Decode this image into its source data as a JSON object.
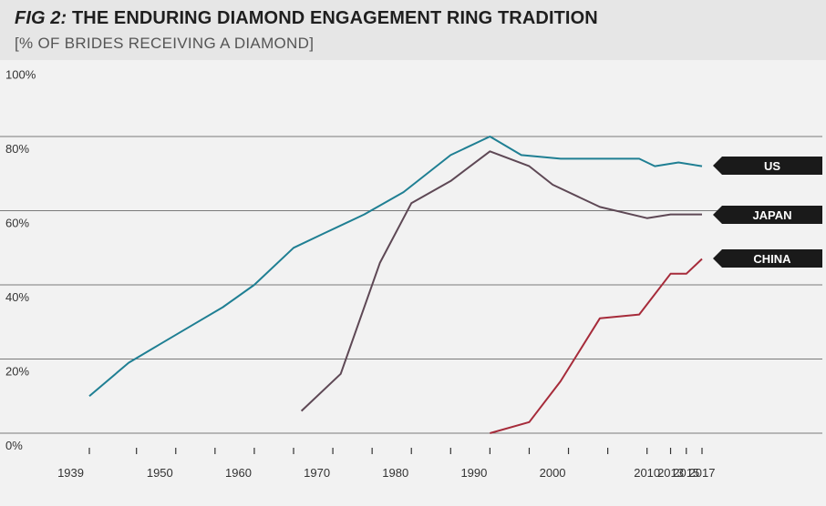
{
  "header": {
    "fig_label": "FIG 2:",
    "title": "THE ENDURING DIAMOND ENGAGEMENT RING TRADITION",
    "subtitle": "[% OF BRIDES RECEIVING A DIAMOND]"
  },
  "chart_data": {
    "type": "line",
    "title": "FIG 2: THE ENDURING DIAMOND ENGAGEMENT RING TRADITION",
    "subtitle": "[% OF BRIDES RECEIVING A DIAMOND]",
    "xlabel": "",
    "ylabel": "",
    "ylim": [
      0,
      100
    ],
    "y_ticks": [
      0,
      20,
      40,
      60,
      80,
      100
    ],
    "y_tick_labels": [
      "0%",
      "20%",
      "40%",
      "60%",
      "80%",
      "100%"
    ],
    "x_tick_positions": [
      1939,
      1945,
      1950,
      1955,
      1960,
      1965,
      1970,
      1975,
      1980,
      1985,
      1990,
      1995,
      2000,
      2005,
      2010,
      2013,
      2015,
      2017
    ],
    "x_tick_labels": [
      {
        "year": 1939,
        "label": "1939"
      },
      {
        "year": 1950,
        "label": "1950"
      },
      {
        "year": 1960,
        "label": "1960"
      },
      {
        "year": 1970,
        "label": "1970"
      },
      {
        "year": 1980,
        "label": "1980"
      },
      {
        "year": 1990,
        "label": "1990"
      },
      {
        "year": 2000,
        "label": "2000"
      },
      {
        "year": 2010,
        "label": "2010"
      },
      {
        "year": 2013,
        "label": "2013"
      },
      {
        "year": 2015,
        "label": "2015"
      },
      {
        "year": 2017,
        "label": "2017"
      }
    ],
    "grid": true,
    "legend": "right, labels beside line ends",
    "series": [
      {
        "name": "US",
        "color": "#1f7f93",
        "x": [
          1939,
          1944,
          1948,
          1952,
          1956,
          1960,
          1965,
          1969,
          1974,
          1979,
          1985,
          1990,
          1994,
          1999,
          2004,
          2009,
          2011,
          2014,
          2017
        ],
        "y": [
          10,
          19,
          24,
          29,
          34,
          40,
          50,
          54,
          59,
          65,
          75,
          80,
          75,
          74,
          74,
          74,
          72,
          73,
          72
        ]
      },
      {
        "name": "JAPAN",
        "color": "#5e4855",
        "x": [
          1966,
          1971,
          1976,
          1980,
          1985,
          1990,
          1995,
          1998,
          2004,
          2010,
          2013,
          2017
        ],
        "y": [
          6,
          16,
          46,
          62,
          68,
          76,
          72,
          67,
          61,
          58,
          59,
          59
        ]
      },
      {
        "name": "CHINA",
        "color": "#a62b3a",
        "x": [
          1990,
          1995,
          1999,
          2004,
          2009,
          2013,
          2015,
          2017
        ],
        "y": [
          0,
          3,
          14,
          31,
          32,
          43,
          43,
          47
        ]
      }
    ]
  }
}
